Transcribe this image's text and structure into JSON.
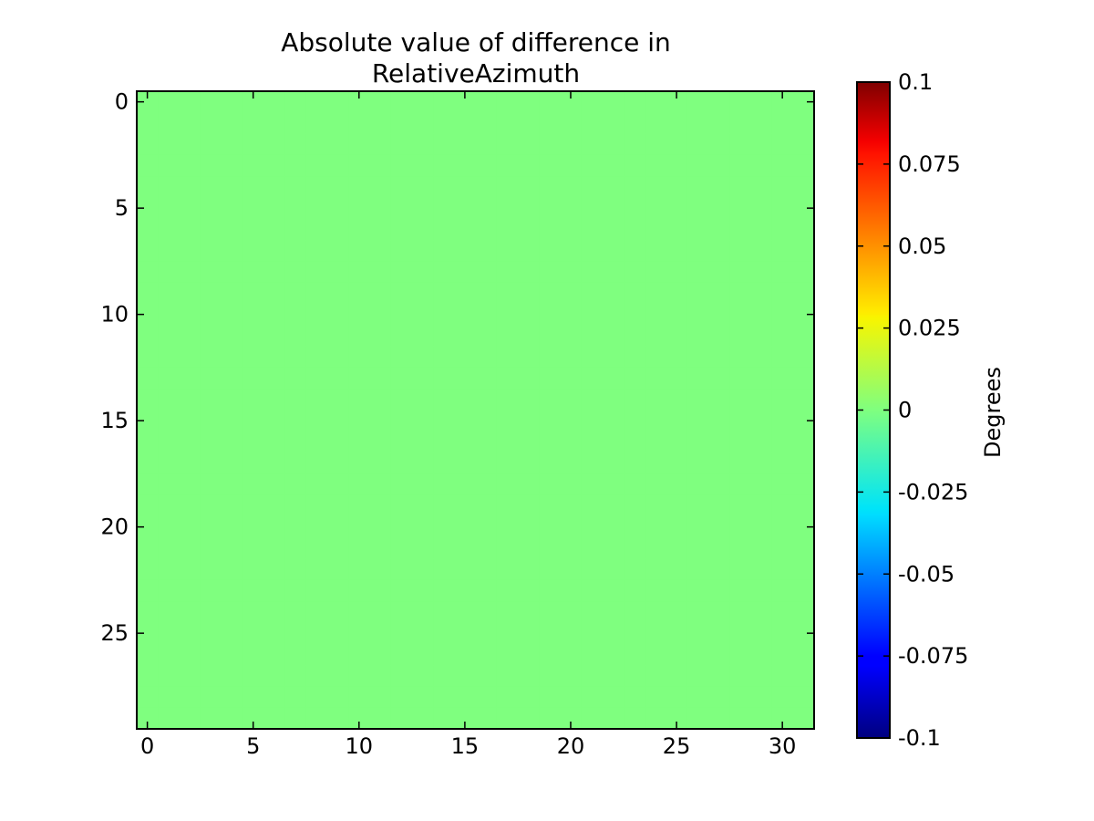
{
  "chart_data": {
    "type": "heatmap",
    "title_lines": [
      "Absolute value of difference in",
      "RelativeAzimuth"
    ],
    "rows": 30,
    "cols": 32,
    "fill_value": 0,
    "x_ticks": [
      "0",
      "5",
      "10",
      "15",
      "20",
      "25",
      "30"
    ],
    "y_ticks": [
      "0",
      "5",
      "10",
      "15",
      "20",
      "25"
    ],
    "xlim": [
      -0.5,
      31.5
    ],
    "ylim": [
      -0.5,
      29.5
    ],
    "y_inverted": true,
    "colorbar": {
      "label": "Degrees",
      "min": -0.1,
      "max": 0.1,
      "colormap": "jet",
      "ticks": [
        "0.1",
        "0.075",
        "0.05",
        "0.025",
        "0",
        "-0.025",
        "-0.05",
        "-0.075",
        "-0.1"
      ]
    },
    "cell_color": "#7fff7f"
  }
}
